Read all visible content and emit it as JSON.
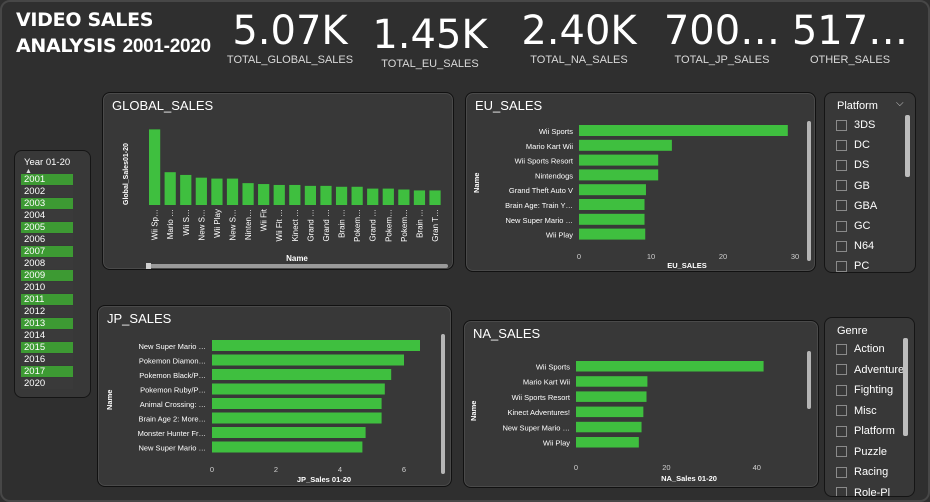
{
  "header": {
    "title_line1": "VIDEO SALES",
    "title_line2a": "ANALYSIS",
    "title_line2b": "2001-2020"
  },
  "kpis": [
    {
      "value": "5.07K",
      "label": "TOTAL_GLOBAL_SALES"
    },
    {
      "value": "1.45K",
      "label": "TOTAL_EU_SALES"
    },
    {
      "value": "2.40K",
      "label": "TOTAL_NA_SALES"
    },
    {
      "value": "700…",
      "label": "TOTAL_JP_SALES"
    },
    {
      "value": "517…",
      "label": "OTHER_SALES"
    }
  ],
  "year_slicer": {
    "title": "Year 01-20",
    "items": [
      {
        "label": "2001",
        "selected": true
      },
      {
        "label": "2002",
        "selected": false
      },
      {
        "label": "2003",
        "selected": true
      },
      {
        "label": "2004",
        "selected": false
      },
      {
        "label": "2005",
        "selected": true
      },
      {
        "label": "2006",
        "selected": false
      },
      {
        "label": "2007",
        "selected": true
      },
      {
        "label": "2008",
        "selected": false
      },
      {
        "label": "2009",
        "selected": true
      },
      {
        "label": "2010",
        "selected": false
      },
      {
        "label": "2011",
        "selected": true
      },
      {
        "label": "2012",
        "selected": false
      },
      {
        "label": "2013",
        "selected": true
      },
      {
        "label": "2014",
        "selected": false
      },
      {
        "label": "2015",
        "selected": true
      },
      {
        "label": "2016",
        "selected": false
      },
      {
        "label": "2017",
        "selected": true
      },
      {
        "label": "2020",
        "selected": false
      }
    ]
  },
  "platform_slicer": {
    "title": "Platform",
    "items": [
      "3DS",
      "DC",
      "DS",
      "GB",
      "GBA",
      "GC",
      "N64",
      "PC"
    ]
  },
  "genre_slicer": {
    "title": "Genre",
    "items": [
      "Action",
      "Adventure",
      "Fighting",
      "Misc",
      "Platform",
      "Puzzle",
      "Racing",
      "Role-Pl"
    ]
  },
  "colors": {
    "bar": "#3fbf3f",
    "background": "#2f2f2f",
    "panel": "#383838",
    "selected": "#3d9a33"
  },
  "chart_data": [
    {
      "id": "global",
      "type": "bar",
      "title": "GLOBAL_SALES",
      "xlabel": "Name",
      "ylabel": "Global_Sales01-20",
      "categories": [
        "Wii Sp…",
        "Mario …",
        "Wii S…",
        "New S…",
        "Wii Play",
        "New S…",
        "Ninten…",
        "Wii Fit",
        "Wii Fit …",
        "Kinect …",
        "Grand …",
        "Grand …",
        "Brain …",
        "Pokem…",
        "Grand …",
        "Pokem…",
        "Pokem…",
        "Brain …",
        "Gran T…"
      ],
      "values": [
        83,
        36,
        33,
        30,
        29,
        29,
        24,
        23,
        22,
        22,
        21,
        21,
        20,
        20,
        18,
        18,
        17,
        16,
        16
      ],
      "ylim": [
        0,
        90
      ]
    },
    {
      "id": "eu",
      "type": "bar",
      "orientation": "horizontal",
      "title": "EU_SALES",
      "xlabel": "EU_SALES",
      "ylabel": "Name",
      "categories": [
        "Wii Sports",
        "Mario Kart Wii",
        "Wii Sports Resort",
        "Nintendogs",
        "Grand Theft Auto V",
        "Brain Age: Train Y…",
        "New Super Mario …",
        "Wii Play"
      ],
      "values": [
        29,
        12.9,
        11,
        11,
        9.3,
        9.1,
        9.1,
        9.2
      ],
      "xticks": [
        "0",
        "10",
        "20",
        "30"
      ],
      "xlim": [
        0,
        30
      ]
    },
    {
      "id": "jp",
      "type": "bar",
      "orientation": "horizontal",
      "title": "JP_SALES",
      "xlabel": "JP_Sales 01-20",
      "ylabel": "Name",
      "categories": [
        "New Super Mario …",
        "Pokemon Diamon…",
        "Pokemon Black/P…",
        "Pokemon Ruby/P…",
        "Animal Crossing: …",
        "Brain Age 2: More…",
        "Monster Hunter Fr…",
        "New Super Mario …"
      ],
      "values": [
        6.5,
        6.0,
        5.6,
        5.4,
        5.3,
        5.3,
        4.8,
        4.7
      ],
      "xticks": [
        "0",
        "2",
        "4",
        "6"
      ],
      "xlim": [
        0,
        7
      ]
    },
    {
      "id": "na",
      "type": "bar",
      "orientation": "horizontal",
      "title": "NA_SALES",
      "xlabel": "NA_Sales 01-20",
      "ylabel": "Name",
      "categories": [
        "Wii Sports",
        "Mario Kart Wii",
        "Wii Sports Resort",
        "Kinect Adventures!",
        "New Super Mario …",
        "Wii Play"
      ],
      "values": [
        41.5,
        15.8,
        15.6,
        14.9,
        14.5,
        13.9
      ],
      "xticks": [
        "0",
        "20",
        "40"
      ],
      "xlim": [
        0,
        50
      ]
    }
  ]
}
